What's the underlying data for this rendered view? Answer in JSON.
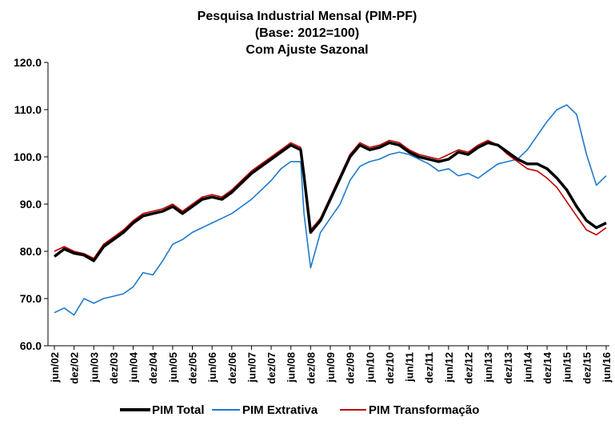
{
  "chart_data": {
    "type": "line",
    "title_lines": [
      "Pesquisa Industrial Mensal (PIM-PF)",
      "(Base: 2012=100)",
      "Com Ajuste Sazonal"
    ],
    "xlabel": "",
    "ylabel": "",
    "ylim": [
      60,
      120
    ],
    "y_ticks": [
      "60.0",
      "70.0",
      "80.0",
      "90.0",
      "100.0",
      "110.0",
      "120.0"
    ],
    "x_start": "2002-06",
    "x_end": "2016-06",
    "x_tick_labels": [
      "jun/02",
      "dez/02",
      "jun/03",
      "dez/03",
      "jun/04",
      "dez/04",
      "jun/05",
      "dez/05",
      "jun/06",
      "dez/06",
      "jun/07",
      "dez/07",
      "jun/08",
      "dez/08",
      "jun/09",
      "dez/09",
      "jun/10",
      "dez/10",
      "jun/11",
      "dez/11",
      "jun/12",
      "dez/12",
      "jun/13",
      "dez/13",
      "jun/14",
      "dez/14",
      "jun/15",
      "dez/15",
      "jun/16"
    ],
    "legend_position": "bottom",
    "grid": false,
    "series": [
      {
        "name": "PIM Total",
        "color": "#000000",
        "stroke_width": 3.5,
        "points": [
          [
            "2002-06",
            78.9
          ],
          [
            "2002-09",
            80.5
          ],
          [
            "2002-12",
            79.6
          ],
          [
            "2003-03",
            79.2
          ],
          [
            "2003-06",
            78.0
          ],
          [
            "2003-09",
            81.0
          ],
          [
            "2003-12",
            82.5
          ],
          [
            "2004-03",
            84.0
          ],
          [
            "2004-06",
            86.0
          ],
          [
            "2004-09",
            87.5
          ],
          [
            "2004-12",
            88.0
          ],
          [
            "2005-03",
            88.5
          ],
          [
            "2005-06",
            89.5
          ],
          [
            "2005-09",
            88.0
          ],
          [
            "2005-12",
            89.5
          ],
          [
            "2006-03",
            91.0
          ],
          [
            "2006-06",
            91.5
          ],
          [
            "2006-09",
            91.0
          ],
          [
            "2006-12",
            92.5
          ],
          [
            "2007-03",
            94.5
          ],
          [
            "2007-06",
            96.5
          ],
          [
            "2007-09",
            98.0
          ],
          [
            "2007-12",
            99.5
          ],
          [
            "2008-03",
            101.0
          ],
          [
            "2008-06",
            102.5
          ],
          [
            "2008-09",
            101.5
          ],
          [
            "2008-10",
            96.0
          ],
          [
            "2008-12",
            84.0
          ],
          [
            "2009-03",
            86.5
          ],
          [
            "2009-06",
            91.0
          ],
          [
            "2009-09",
            95.5
          ],
          [
            "2009-12",
            100.0
          ],
          [
            "2010-03",
            102.5
          ],
          [
            "2010-06",
            101.5
          ],
          [
            "2010-09",
            102.0
          ],
          [
            "2010-12",
            103.0
          ],
          [
            "2011-03",
            102.5
          ],
          [
            "2011-06",
            101.0
          ],
          [
            "2011-09",
            100.0
          ],
          [
            "2011-12",
            99.5
          ],
          [
            "2012-03",
            99.0
          ],
          [
            "2012-06",
            99.5
          ],
          [
            "2012-09",
            101.0
          ],
          [
            "2012-12",
            100.5
          ],
          [
            "2013-03",
            102.0
          ],
          [
            "2013-06",
            103.0
          ],
          [
            "2013-09",
            102.5
          ],
          [
            "2013-12",
            101.0
          ],
          [
            "2014-03",
            99.5
          ],
          [
            "2014-06",
            98.5
          ],
          [
            "2014-09",
            98.5
          ],
          [
            "2014-12",
            97.5
          ],
          [
            "2015-03",
            95.5
          ],
          [
            "2015-06",
            93.0
          ],
          [
            "2015-09",
            89.5
          ],
          [
            "2015-12",
            86.5
          ],
          [
            "2016-03",
            85.0
          ],
          [
            "2016-06",
            86.0
          ]
        ]
      },
      {
        "name": "PIM Extrativa",
        "color": "#1f7acb",
        "stroke_width": 1.6,
        "points": [
          [
            "2002-06",
            67.0
          ],
          [
            "2002-09",
            68.0
          ],
          [
            "2002-12",
            66.5
          ],
          [
            "2003-03",
            70.0
          ],
          [
            "2003-06",
            69.0
          ],
          [
            "2003-09",
            70.0
          ],
          [
            "2003-12",
            70.5
          ],
          [
            "2004-03",
            71.0
          ],
          [
            "2004-06",
            72.5
          ],
          [
            "2004-09",
            75.5
          ],
          [
            "2004-12",
            75.0
          ],
          [
            "2005-03",
            78.0
          ],
          [
            "2005-06",
            81.5
          ],
          [
            "2005-09",
            82.5
          ],
          [
            "2005-12",
            84.0
          ],
          [
            "2006-03",
            85.0
          ],
          [
            "2006-06",
            86.0
          ],
          [
            "2006-09",
            87.0
          ],
          [
            "2006-12",
            88.0
          ],
          [
            "2007-03",
            89.5
          ],
          [
            "2007-06",
            91.0
          ],
          [
            "2007-09",
            93.0
          ],
          [
            "2007-12",
            95.0
          ],
          [
            "2008-03",
            97.5
          ],
          [
            "2008-06",
            99.0
          ],
          [
            "2008-09",
            99.0
          ],
          [
            "2008-10",
            88.0
          ],
          [
            "2008-12",
            76.5
          ],
          [
            "2009-03",
            84.0
          ],
          [
            "2009-06",
            87.0
          ],
          [
            "2009-09",
            90.0
          ],
          [
            "2009-12",
            95.0
          ],
          [
            "2010-03",
            98.0
          ],
          [
            "2010-06",
            99.0
          ],
          [
            "2010-09",
            99.5
          ],
          [
            "2010-12",
            100.5
          ],
          [
            "2011-03",
            101.0
          ],
          [
            "2011-06",
            100.5
          ],
          [
            "2011-09",
            99.5
          ],
          [
            "2011-12",
            98.5
          ],
          [
            "2012-03",
            97.0
          ],
          [
            "2012-06",
            97.5
          ],
          [
            "2012-09",
            96.0
          ],
          [
            "2012-12",
            96.5
          ],
          [
            "2013-03",
            95.5
          ],
          [
            "2013-06",
            97.0
          ],
          [
            "2013-09",
            98.5
          ],
          [
            "2013-12",
            99.0
          ],
          [
            "2014-03",
            99.5
          ],
          [
            "2014-06",
            101.5
          ],
          [
            "2014-09",
            104.5
          ],
          [
            "2014-12",
            107.5
          ],
          [
            "2015-03",
            110.0
          ],
          [
            "2015-06",
            111.0
          ],
          [
            "2015-09",
            109.0
          ],
          [
            "2015-12",
            100.5
          ],
          [
            "2016-03",
            94.0
          ],
          [
            "2016-06",
            96.0
          ]
        ]
      },
      {
        "name": "PIM Transformação",
        "color": "#c00000",
        "stroke_width": 1.6,
        "points": [
          [
            "2002-06",
            80.0
          ],
          [
            "2002-09",
            81.0
          ],
          [
            "2002-12",
            80.0
          ],
          [
            "2003-03",
            79.5
          ],
          [
            "2003-06",
            78.5
          ],
          [
            "2003-09",
            81.5
          ],
          [
            "2003-12",
            83.0
          ],
          [
            "2004-03",
            84.5
          ],
          [
            "2004-06",
            86.5
          ],
          [
            "2004-09",
            88.0
          ],
          [
            "2004-12",
            88.5
          ],
          [
            "2005-03",
            89.0
          ],
          [
            "2005-06",
            90.0
          ],
          [
            "2005-09",
            88.5
          ],
          [
            "2005-12",
            90.0
          ],
          [
            "2006-03",
            91.5
          ],
          [
            "2006-06",
            92.0
          ],
          [
            "2006-09",
            91.5
          ],
          [
            "2006-12",
            93.0
          ],
          [
            "2007-03",
            95.0
          ],
          [
            "2007-06",
            97.0
          ],
          [
            "2007-09",
            98.5
          ],
          [
            "2007-12",
            100.0
          ],
          [
            "2008-03",
            101.5
          ],
          [
            "2008-06",
            103.0
          ],
          [
            "2008-09",
            102.0
          ],
          [
            "2008-10",
            96.5
          ],
          [
            "2008-12",
            84.5
          ],
          [
            "2009-03",
            87.0
          ],
          [
            "2009-06",
            91.5
          ],
          [
            "2009-09",
            96.0
          ],
          [
            "2009-12",
            100.5
          ],
          [
            "2010-03",
            103.0
          ],
          [
            "2010-06",
            102.0
          ],
          [
            "2010-09",
            102.5
          ],
          [
            "2010-12",
            103.5
          ],
          [
            "2011-03",
            103.0
          ],
          [
            "2011-06",
            101.5
          ],
          [
            "2011-09",
            100.5
          ],
          [
            "2011-12",
            100.0
          ],
          [
            "2012-03",
            99.5
          ],
          [
            "2012-06",
            100.5
          ],
          [
            "2012-09",
            101.5
          ],
          [
            "2012-12",
            101.0
          ],
          [
            "2013-03",
            102.5
          ],
          [
            "2013-06",
            103.5
          ],
          [
            "2013-09",
            102.5
          ],
          [
            "2013-12",
            100.5
          ],
          [
            "2014-03",
            99.0
          ],
          [
            "2014-06",
            97.5
          ],
          [
            "2014-09",
            97.0
          ],
          [
            "2014-12",
            95.5
          ],
          [
            "2015-03",
            93.5
          ],
          [
            "2015-06",
            90.5
          ],
          [
            "2015-09",
            87.5
          ],
          [
            "2015-12",
            84.5
          ],
          [
            "2016-03",
            83.5
          ],
          [
            "2016-06",
            85.0
          ]
        ]
      }
    ]
  }
}
